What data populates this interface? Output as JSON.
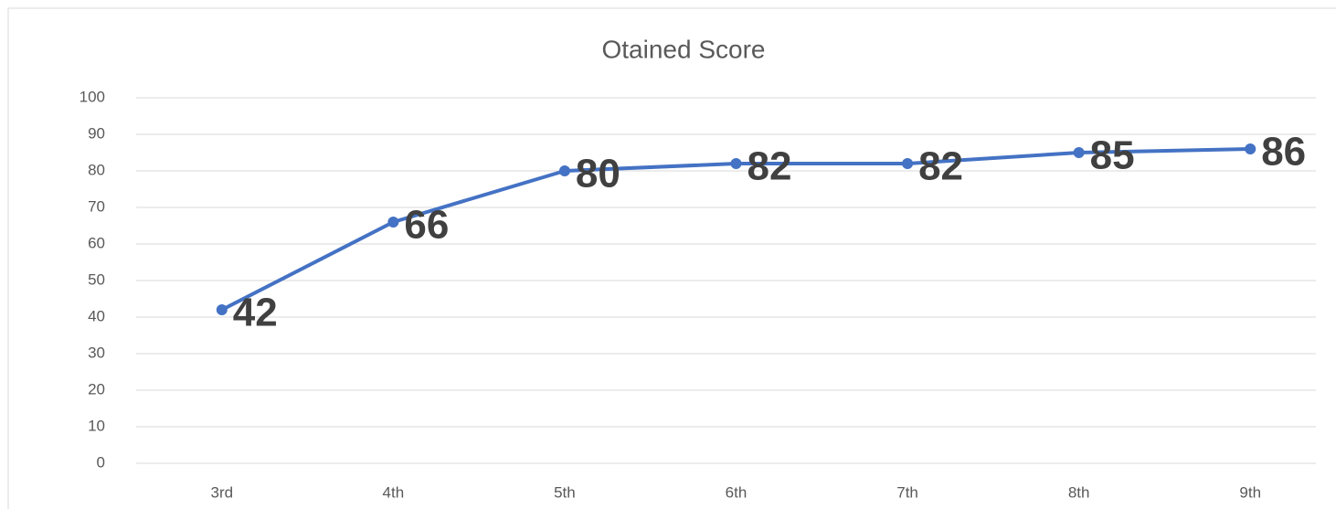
{
  "chart_data": {
    "type": "line",
    "title": "Otained Score",
    "categories": [
      "3rd",
      "4th",
      "5th",
      "6th",
      "7th",
      "8th",
      "9th"
    ],
    "series": [
      {
        "name": "Otained Score",
        "color": "#4472c4",
        "values": [
          42,
          66,
          80,
          82,
          82,
          85,
          86
        ]
      }
    ],
    "ylim": [
      0,
      100
    ],
    "yticks": [
      0,
      10,
      20,
      30,
      40,
      50,
      60,
      70,
      80,
      90,
      100
    ],
    "grid": true
  }
}
